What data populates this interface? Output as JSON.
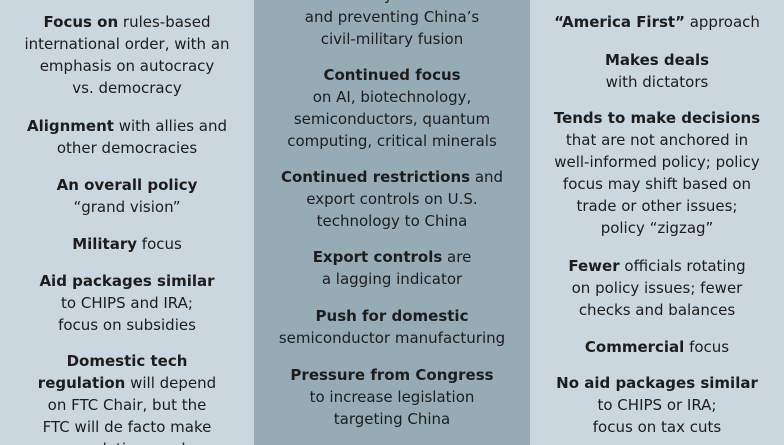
{
  "left": [
    {
      "parts": [
        {
          "t": "Focus on",
          "b": true
        },
        {
          "t": " rules-based\ninternational order, with an\nemphasis on autocracy\nvs. democracy"
        }
      ]
    },
    {
      "parts": [
        {
          "t": "Alignment",
          "b": true
        },
        {
          "t": " with allies and\nother democracies"
        }
      ]
    },
    {
      "parts": [
        {
          "t": "An overall policy",
          "b": true
        },
        {
          "t": "\n“grand vision”"
        }
      ]
    },
    {
      "parts": [
        {
          "t": "Military",
          "b": true
        },
        {
          "t": " focus"
        }
      ]
    },
    {
      "parts": [
        {
          "t": "Aid packages similar",
          "b": true
        },
        {
          "t": "\nto CHIPS and IRA;\nfocus on subsidies"
        }
      ]
    },
    {
      "parts": [
        {
          "t": "Domestic tech\nregulation",
          "b": true
        },
        {
          "t": " will depend\non FTC Chair, but the\nFTC will de facto make\nregulations and"
        }
      ]
    }
  ],
  "middle": [
    {
      "parts": [
        {
          "t": "security-related\nand preventing China’s\ncivil-military fusion"
        }
      ]
    },
    {
      "parts": [
        {
          "t": "Continued focus",
          "b": true
        },
        {
          "t": "\non AI, biotechnology,\nsemiconductors, quantum\ncomputing, critical minerals"
        }
      ]
    },
    {
      "parts": [
        {
          "t": "Continued restrictions",
          "b": true
        },
        {
          "t": " and\nexport controls on U.S.\ntechnology to China"
        }
      ]
    },
    {
      "parts": [
        {
          "t": "Export controls",
          "b": true
        },
        {
          "t": " are\na lagging indicator"
        }
      ]
    },
    {
      "parts": [
        {
          "t": "Push for domestic",
          "b": true
        },
        {
          "t": "\nsemiconductor manufacturing"
        }
      ]
    },
    {
      "parts": [
        {
          "t": "Pressure from Congress",
          "b": true
        },
        {
          "t": "\nto increase legislation\ntargeting China"
        }
      ]
    }
  ],
  "right": [
    {
      "parts": [
        {
          "t": "“America First”",
          "b": true
        },
        {
          "t": " approach"
        }
      ]
    },
    {
      "parts": [
        {
          "t": "Makes deals",
          "b": true
        },
        {
          "t": "\nwith dictators"
        }
      ]
    },
    {
      "parts": [
        {
          "t": "Tends to make decisions",
          "b": true
        },
        {
          "t": "\nthat are not anchored in\nwell-informed policy; policy\nfocus may shift based on\ntrade or other issues;\npolicy “zigzag”"
        }
      ]
    },
    {
      "parts": [
        {
          "t": "Fewer",
          "b": true
        },
        {
          "t": " officials rotating\non policy issues; fewer\nchecks and balances"
        }
      ]
    },
    {
      "parts": [
        {
          "t": "Commercial",
          "b": true
        },
        {
          "t": " focus"
        }
      ]
    },
    {
      "parts": [
        {
          "t": "No aid packages similar",
          "b": true
        },
        {
          "t": "\nto CHIPS or IRA;\nfocus on tax cuts"
        }
      ]
    }
  ]
}
